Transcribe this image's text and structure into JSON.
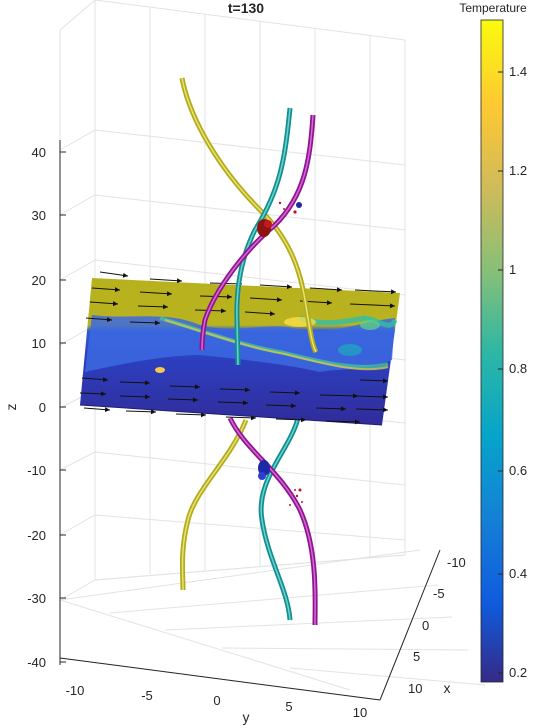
{
  "chart_data": {
    "type": "scatter",
    "plot_kind": "3d-slice-with-tubes",
    "title": "t=130",
    "xlabel": "x",
    "ylabel": "y",
    "zlabel": "z",
    "x_ticks": [
      "-10",
      "-5",
      "0",
      "5",
      "10"
    ],
    "y_ticks": [
      "-10",
      "-5",
      "0",
      "5",
      "10"
    ],
    "z_ticks": [
      "40",
      "30",
      "20",
      "10",
      "0",
      "-10",
      "-20",
      "-30",
      "-40"
    ],
    "xlim": [
      -10,
      10
    ],
    "ylim": [
      -12,
      12
    ],
    "zlim": [
      -40,
      45
    ],
    "grid": true,
    "colorbar": {
      "label": "Temperature",
      "ticks": [
        "1.4",
        "1.2",
        "1",
        "0.8",
        "0.6",
        "0.4",
        "0.2"
      ],
      "range": [
        0.17,
        1.5
      ],
      "colormap": "parula"
    },
    "slice_plane": {
      "z": 0
    },
    "tubes": [
      {
        "color": "#c9c41c",
        "z_range": [
          -30,
          45
        ]
      },
      {
        "color": "#1aa3a3",
        "z_range": [
          -35,
          40
        ]
      },
      {
        "color": "#a0189e",
        "z_range": [
          -35,
          40
        ]
      }
    ]
  }
}
